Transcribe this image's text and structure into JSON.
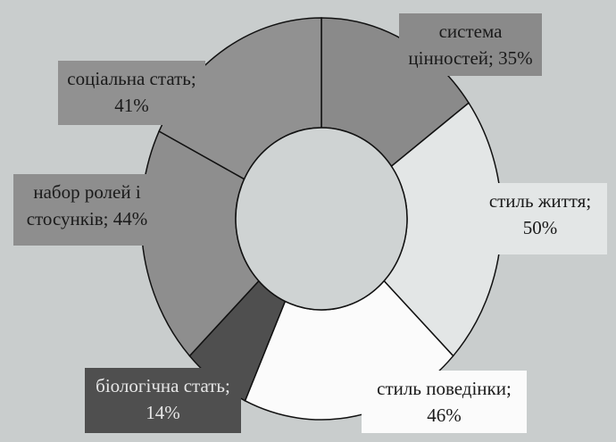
{
  "chart_data": {
    "type": "donut",
    "categories": [
      "система цінностей;",
      "стиль життя;",
      "стиль поведінки;",
      "біологічна стать;",
      "набор ролей і стосунків;",
      "соціальна стать;"
    ],
    "values": [
      35,
      50,
      46,
      14,
      44,
      41
    ],
    "value_labels": [
      "35%",
      "50%",
      "46%",
      "14%",
      "44%",
      "41%"
    ],
    "colors": [
      "#8a8a8a",
      "#e3e6e6",
      "#fbfbfb",
      "#4f4f4f",
      "#8e8e8e",
      "#919191"
    ]
  }
}
